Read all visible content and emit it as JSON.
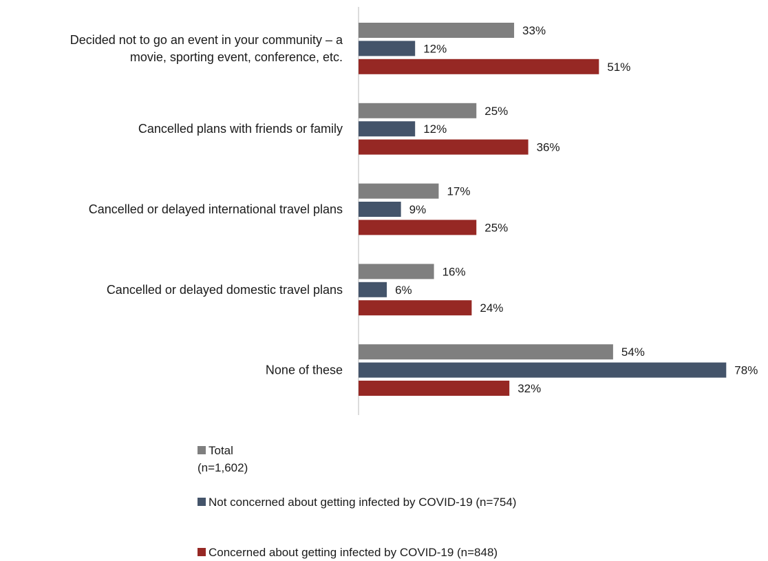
{
  "chart_data": {
    "type": "bar",
    "orientation": "horizontal",
    "categories": [
      [
        "Decided not to go an event in your community – a",
        "movie, sporting event, conference, etc."
      ],
      [
        "Cancelled plans with friends or family"
      ],
      [
        "Cancelled or delayed international travel plans"
      ],
      [
        "Cancelled or delayed domestic travel plans"
      ],
      [
        "None of these"
      ]
    ],
    "series": [
      {
        "name": "Total",
        "name_sub": "(n=1,602)",
        "color": "#7f7f7f",
        "values": [
          33,
          25,
          17,
          16,
          54
        ]
      },
      {
        "name": "Not concerned about getting infected by COVID-19 (n=754)",
        "color": "#44546a",
        "values": [
          12,
          12,
          9,
          6,
          78
        ]
      },
      {
        "name": "Concerned about getting infected by COVID-19 (n=848)",
        "color": "#962824",
        "values": [
          51,
          36,
          25,
          24,
          32
        ]
      }
    ],
    "value_suffix": "%",
    "xlim": [
      0,
      78
    ],
    "grid": false,
    "legend_position": "bottom"
  }
}
